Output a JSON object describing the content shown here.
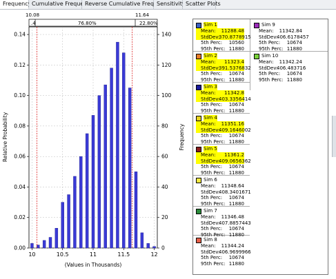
{
  "tabs": [
    {
      "label": "Frequency",
      "active": true
    },
    {
      "label": "Cumulative Frequency",
      "active": false
    },
    {
      "label": "Reverse Cumulative Frequency",
      "active": false
    },
    {
      "label": "Sensitivity",
      "active": false
    },
    {
      "label": "Scatter Plots",
      "active": false
    }
  ],
  "percentile_bar": {
    "left_value": "10.08",
    "right_value": "11.64",
    "left_pct": ".4",
    "mid_pct": "76.80%",
    "right_pct": "22.80%"
  },
  "chart_data": {
    "type": "bar",
    "xlabel": "(Values in Thousands)",
    "ylabel_left": "Relative Probability",
    "ylabel_right": "Frequency",
    "xlim": [
      9.95,
      12.05
    ],
    "ylim": [
      0,
      0.145
    ],
    "ylim_right": [
      0,
      145
    ],
    "x_ticks": [
      "10",
      "10.5",
      "11",
      "11.5",
      "12"
    ],
    "y_ticks_left": [
      "0.00",
      "0.02",
      "0.04",
      "0.06",
      "0.08",
      "0.10",
      "0.12",
      "0.14"
    ],
    "y_ticks_right": [
      "0",
      "20",
      "40",
      "60",
      "80",
      "100",
      "120",
      "140"
    ],
    "marker_lines": [
      10.08,
      11.64
    ],
    "bar_color": "#3a3ad6",
    "marker_color": "#dd2222",
    "x": [
      10.0,
      10.1,
      10.2,
      10.3,
      10.4,
      10.5,
      10.6,
      10.7,
      10.8,
      10.9,
      11.0,
      11.1,
      11.2,
      11.3,
      11.4,
      11.5,
      11.6,
      11.7,
      11.8,
      11.9,
      12.0
    ],
    "values": [
      0.003,
      0.002,
      0.005,
      0.007,
      0.013,
      0.03,
      0.035,
      0.047,
      0.06,
      0.075,
      0.087,
      0.1,
      0.107,
      0.118,
      0.135,
      0.128,
      0.105,
      0.05,
      0.01,
      0.003,
      0.001
    ]
  },
  "simulations": [
    {
      "name": "Sim 1",
      "color": "#3b5fc0",
      "mean": "11288.48",
      "stddev": "370.8778915",
      "p5": "10560",
      "p95": "11880",
      "highlight": true
    },
    {
      "name": "Sim 2",
      "color": "#e87e2a",
      "mean": "11323.4",
      "stddev": "391.5376832",
      "p5": "10674",
      "p95": "11880",
      "highlight": true
    },
    {
      "name": "Sim 3",
      "color": "#1a1a9c",
      "mean": "11342.8",
      "stddev": "403.3356414",
      "p5": "10674",
      "p95": "11880",
      "highlight": true
    },
    {
      "name": "Sim 4",
      "color": "#e8d21e",
      "mean": "11351.16",
      "stddev": "409.1646002",
      "p5": "10674",
      "p95": "11880",
      "highlight": true
    },
    {
      "name": "Sim 5",
      "color": "#8a1c1c",
      "mean": "11361.2",
      "stddev": "409.0656362",
      "p5": "10674",
      "p95": "11880",
      "highlight": true
    },
    {
      "name": "Sim 6",
      "color": "#f5e940",
      "mean": "11348.64",
      "stddev": "408.3401671",
      "p5": "10674",
      "p95": "11880",
      "highlight": false
    },
    {
      "name": "Sim 7",
      "color": "#2a8a3a",
      "mean": "11346.48",
      "stddev": "407.8857443",
      "p5": "10674",
      "p95": "11880",
      "highlight": false
    },
    {
      "name": "Sim 8",
      "color": "#e8604a",
      "mean": "11344.24",
      "stddev": "406.9699966",
      "p5": "10674",
      "p95": "11880",
      "highlight": false
    },
    {
      "name": "Sim 9",
      "color": "#9a2ab8",
      "mean": "11342.84",
      "stddev": "406.6178457",
      "p5": "10674",
      "p95": "11880",
      "highlight": false
    },
    {
      "name": "Sim 10",
      "color": "#7ad23a",
      "mean": "11342.24",
      "stddev": "406.483716",
      "p5": "10674",
      "p95": "11880",
      "highlight": false
    }
  ],
  "labels": {
    "mean": "Mean:",
    "stddev": "StdDev:",
    "p5": "5th Perc:",
    "p95": "95th Perc:"
  }
}
